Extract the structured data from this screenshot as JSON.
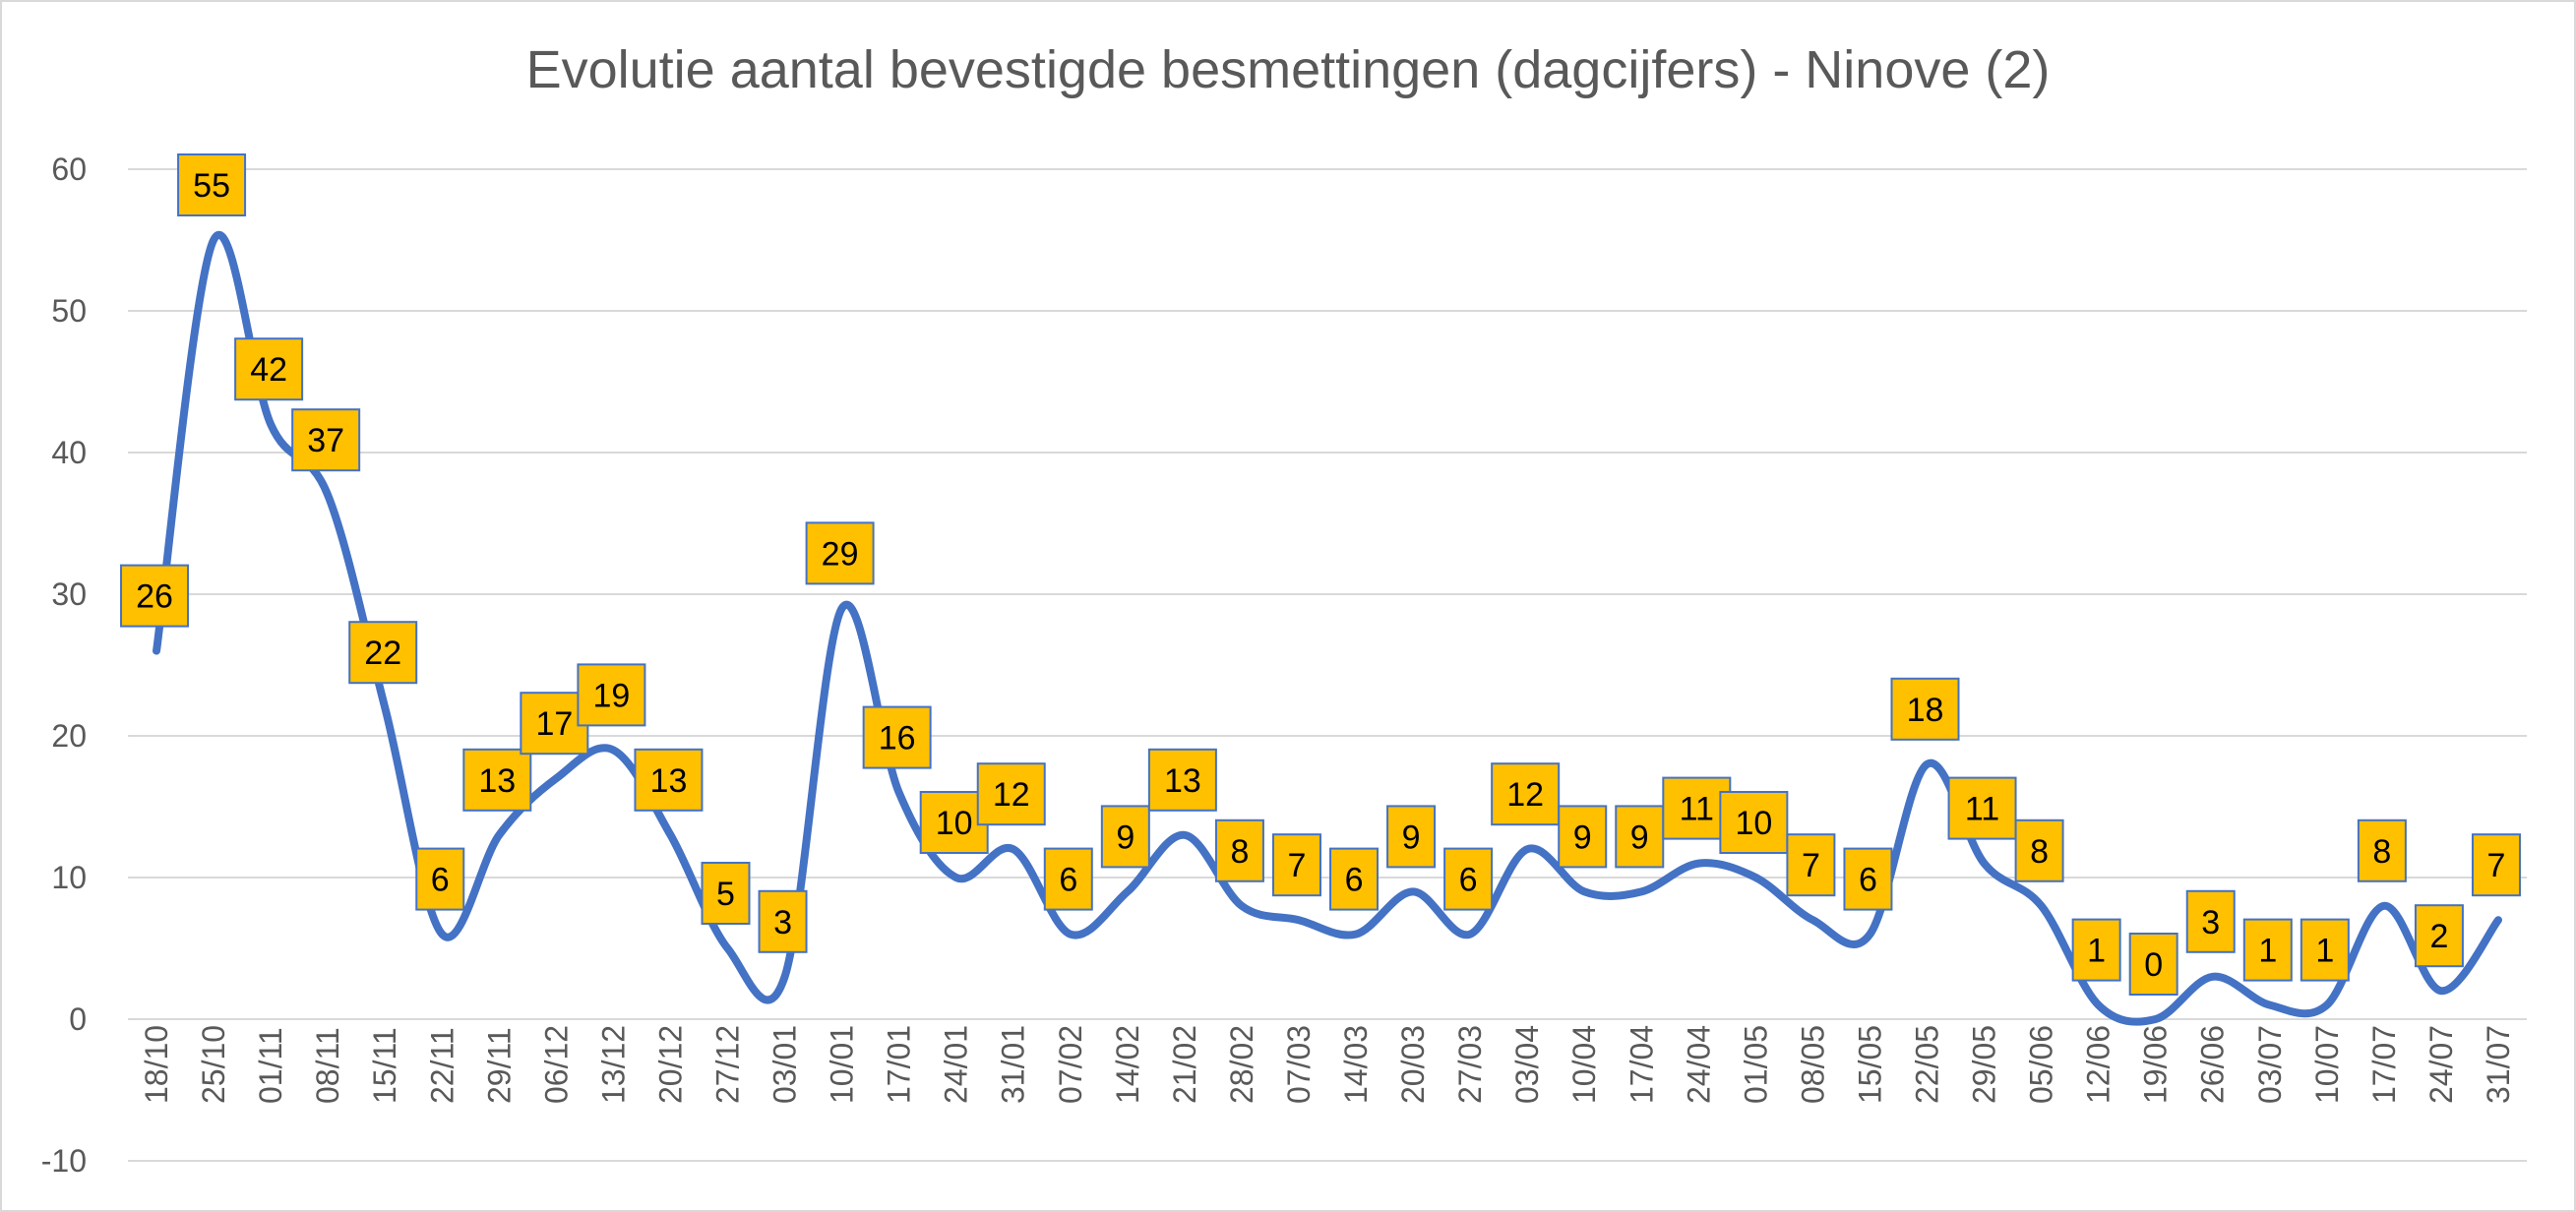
{
  "chart_data": {
    "type": "line",
    "title": "Evolutie aantal bevestigde besmettingen (dagcijfers) - Ninove (2)",
    "xlabel": "",
    "ylabel": "",
    "categories": [
      "18/10",
      "25/10",
      "01/11",
      "08/11",
      "15/11",
      "22/11",
      "29/11",
      "06/12",
      "13/12",
      "20/12",
      "27/12",
      "03/01",
      "10/01",
      "17/01",
      "24/01",
      "31/01",
      "07/02",
      "14/02",
      "21/02",
      "28/02",
      "07/03",
      "14/03",
      "20/03",
      "27/03",
      "03/04",
      "10/04",
      "17/04",
      "24/04",
      "01/05",
      "08/05",
      "15/05",
      "22/05",
      "29/05",
      "05/06",
      "12/06",
      "19/06",
      "26/06",
      "03/07",
      "10/07",
      "17/07",
      "24/07",
      "31/07"
    ],
    "y_ticks": [
      "60",
      "50",
      "40",
      "30",
      "20",
      "10",
      "0",
      "-10"
    ],
    "ylim": [
      -10,
      60
    ],
    "grid": true,
    "smooth": true,
    "series": [
      {
        "values": [
          26,
          55,
          42,
          37,
          22,
          6,
          13,
          17,
          19,
          13,
          5,
          3,
          29,
          16,
          10,
          12,
          6,
          9,
          13,
          8,
          7,
          6,
          9,
          6,
          12,
          9,
          9,
          11,
          10,
          7,
          6,
          18,
          11,
          8,
          1,
          0,
          3,
          1,
          1,
          8,
          2,
          7
        ],
        "labels": [
          "26",
          "55",
          "42",
          "37",
          "22",
          "6",
          "13",
          "17",
          "19",
          "13",
          "5",
          "3",
          "29",
          "16",
          "10",
          "12",
          "6",
          "9",
          "13",
          "8",
          "7",
          "6",
          "9",
          "6",
          "12",
          "9",
          "9",
          "11",
          "10",
          "7",
          "6",
          "18",
          "11",
          "8",
          "1",
          "0",
          "3",
          "1",
          "1",
          "8",
          "2",
          "7"
        ]
      }
    ],
    "colors": {
      "line": "#4472c4",
      "label_fill": "#ffc000",
      "label_border": "#4472c4",
      "grid": "#d9d9d9",
      "text": "#595959"
    }
  }
}
